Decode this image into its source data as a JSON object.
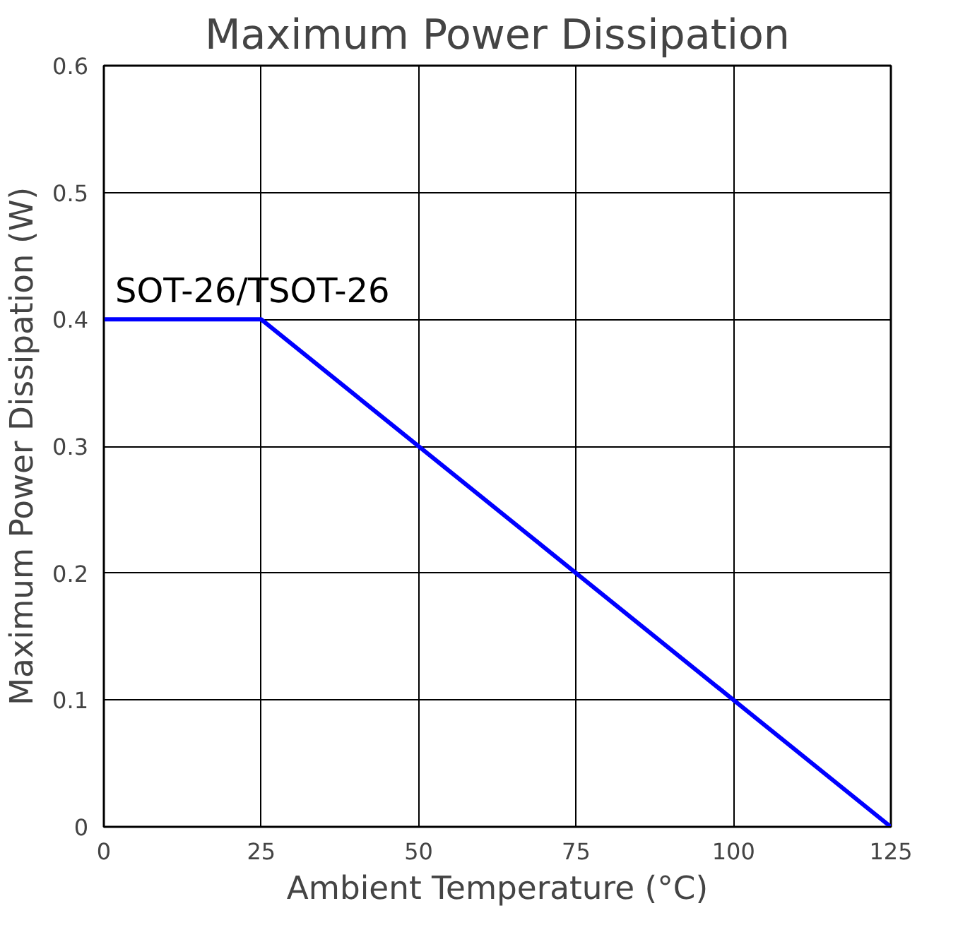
{
  "chart_data": {
    "type": "line",
    "title": "Maximum Power Dissipation",
    "xlabel": "Ambient Temperature (°C)",
    "ylabel": "Maximum Power Dissipation (W)",
    "series": [
      {
        "name": "SOT-26/TSOT-26",
        "color": "#0000ff",
        "x": [
          0,
          25,
          125
        ],
        "values": [
          0.4,
          0.4,
          0
        ]
      }
    ],
    "xlim": [
      0,
      125
    ],
    "ylim": [
      0,
      0.6
    ],
    "xticks": [
      0,
      25,
      50,
      75,
      100,
      125
    ],
    "yticks": [
      0,
      0.1,
      0.2,
      0.3,
      0.4,
      0.5,
      0.6
    ],
    "grid": true,
    "legend": false,
    "marker": "none",
    "line_style": "solid"
  }
}
